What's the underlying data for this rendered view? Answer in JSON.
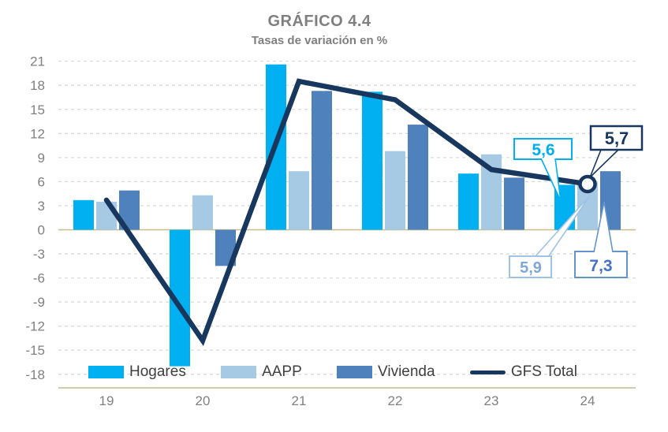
{
  "header": {
    "title": "GRÁFICO 4.4",
    "subtitle": "Tasas de variación en %"
  },
  "colors": {
    "hogares": "#00B0F0",
    "aapp": "#A6CAE3",
    "vivienda": "#4F81BD",
    "gfs": "#17375E",
    "grid": "#D9D9D9",
    "axis_line": "#C6BA8E",
    "axis_text": "#808080",
    "title_text": "#7F7F7F",
    "legend_text": "#3F3F3F",
    "ann56_border": "#00B0F0",
    "ann56_text": "#00AEEF",
    "ann57_border": "#17375E",
    "ann57_text": "#17375E",
    "ann59_border": "#9DC3E6",
    "ann59_text": "#7FA7D8",
    "ann73_border": "#6593CE",
    "ann73_text": "#4472C4"
  },
  "chart_data": {
    "type": "bar",
    "subtype": "grouped bars with line overlay",
    "title": "GRÁFICO 4.4",
    "subtitle": "Tasas de variación en %",
    "categories": [
      "19",
      "20",
      "21",
      "22",
      "23",
      "24"
    ],
    "series": [
      {
        "name": "Hogares",
        "type": "bar",
        "color_key": "hogares",
        "values": [
          3.7,
          -17.0,
          20.6,
          17.2,
          7.0,
          5.6
        ]
      },
      {
        "name": "AAPP",
        "type": "bar",
        "color_key": "aapp",
        "values": [
          3.5,
          4.3,
          7.3,
          9.8,
          9.4,
          5.9
        ]
      },
      {
        "name": "Vivienda",
        "type": "bar",
        "color_key": "vivienda",
        "values": [
          4.9,
          -4.5,
          17.3,
          13.1,
          6.5,
          7.3
        ]
      },
      {
        "name": "GFS Total",
        "type": "line",
        "color_key": "gfs",
        "values": [
          3.7,
          -13.8,
          18.5,
          16.2,
          7.5,
          5.7
        ],
        "end_marker": "open-circle"
      }
    ],
    "xlabel": "",
    "ylabel": "",
    "ylim": [
      -18,
      21
    ],
    "ytick_step": 3,
    "grid": "horizontal dashed",
    "legend_position": "bottom",
    "annotations": [
      {
        "text": "5,6",
        "series": "Hogares",
        "category": "24",
        "value": 5.6,
        "placement": "top"
      },
      {
        "text": "5,7",
        "series": "GFS Total",
        "category": "24",
        "value": 5.7,
        "placement": "top"
      },
      {
        "text": "5,9",
        "series": "AAPP",
        "category": "24",
        "value": 5.9,
        "placement": "bottom"
      },
      {
        "text": "7,3",
        "series": "Vivienda",
        "category": "24",
        "value": 7.3,
        "placement": "bottom"
      }
    ]
  }
}
